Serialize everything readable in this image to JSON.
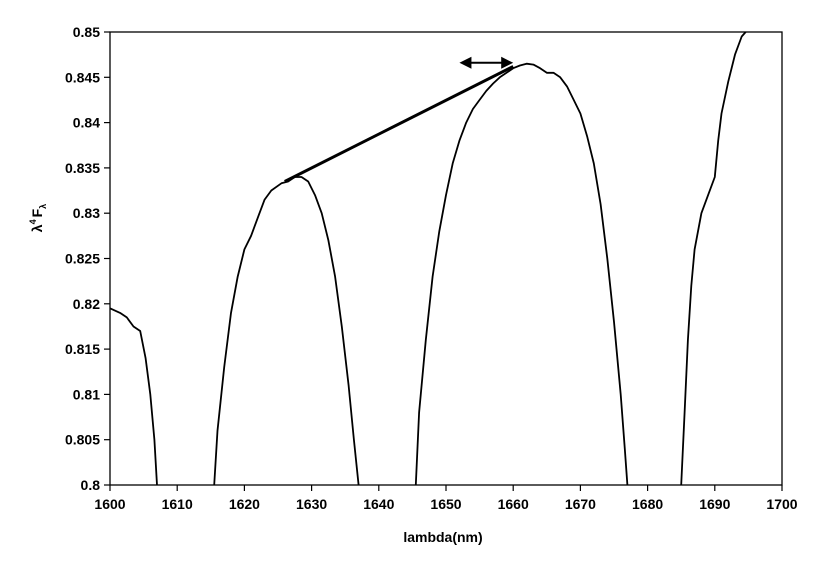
{
  "chart_data": {
    "type": "line",
    "title": "",
    "xlabel": "lambda(nm)",
    "ylabel": {
      "symbol": "λ",
      "exponent": "4",
      "main": "F",
      "subscript": "λ"
    },
    "xlim": [
      1600,
      1700
    ],
    "ylim": [
      0.8,
      0.85
    ],
    "x_ticks": [
      1600,
      1610,
      1620,
      1630,
      1640,
      1650,
      1660,
      1670,
      1680,
      1690,
      1700
    ],
    "x_tick_labels": [
      "1600",
      "1610",
      "1620",
      "1630",
      "1640",
      "1650",
      "1660",
      "1670",
      "1680",
      "1690",
      "1700"
    ],
    "y_ticks": [
      0.8,
      0.805,
      0.81,
      0.815,
      0.82,
      0.825,
      0.83,
      0.835,
      0.84,
      0.845,
      0.85
    ],
    "y_tick_labels": [
      "0.8",
      "0.805",
      "0.81",
      "0.815",
      "0.82",
      "0.825",
      "0.83",
      "0.835",
      "0.84",
      "0.845",
      "0.85"
    ],
    "grid": false,
    "series": [
      {
        "segments": [
          [
            [
              1600,
              0.8195
            ],
            [
              1601.5,
              0.819
            ],
            [
              1602.5,
              0.8185
            ],
            [
              1603.5,
              0.8175
            ],
            [
              1604.5,
              0.817
            ],
            [
              1605.3,
              0.814
            ],
            [
              1606.0,
              0.81
            ],
            [
              1606.6,
              0.805
            ],
            [
              1607.0,
              0.8
            ]
          ],
          [
            [
              1615.5,
              0.8
            ],
            [
              1616.0,
              0.806
            ],
            [
              1617.0,
              0.813
            ],
            [
              1618.0,
              0.819
            ],
            [
              1619.0,
              0.823
            ],
            [
              1620.0,
              0.826
            ],
            [
              1621.0,
              0.8275
            ],
            [
              1622.0,
              0.8295
            ],
            [
              1623.0,
              0.8315
            ],
            [
              1624.0,
              0.8325
            ],
            [
              1625.5,
              0.8333
            ],
            [
              1626.5,
              0.8335
            ],
            [
              1627.5,
              0.834
            ],
            [
              1628.5,
              0.834
            ],
            [
              1629.5,
              0.8335
            ],
            [
              1630.5,
              0.832
            ],
            [
              1631.5,
              0.83
            ],
            [
              1632.5,
              0.827
            ],
            [
              1633.5,
              0.823
            ],
            [
              1634.5,
              0.8175
            ],
            [
              1635.5,
              0.811
            ],
            [
              1636.3,
              0.805
            ],
            [
              1637.0,
              0.8
            ]
          ],
          [
            [
              1645.5,
              0.8
            ],
            [
              1646.0,
              0.808
            ],
            [
              1647.0,
              0.816
            ],
            [
              1648.0,
              0.823
            ],
            [
              1649.0,
              0.828
            ],
            [
              1650.0,
              0.832
            ],
            [
              1651.0,
              0.8355
            ],
            [
              1652.0,
              0.838
            ],
            [
              1653.0,
              0.84
            ],
            [
              1654.0,
              0.8415
            ],
            [
              1655.0,
              0.8425
            ],
            [
              1656.0,
              0.8435
            ],
            [
              1657.0,
              0.8443
            ],
            [
              1658.0,
              0.845
            ],
            [
              1659.0,
              0.8455
            ],
            [
              1660.0,
              0.846
            ],
            [
              1661.0,
              0.8463
            ],
            [
              1662.0,
              0.8465
            ],
            [
              1663.0,
              0.8464
            ],
            [
              1664.0,
              0.846
            ],
            [
              1665.0,
              0.8455
            ],
            [
              1666.0,
              0.8455
            ],
            [
              1667.0,
              0.845
            ],
            [
              1668.0,
              0.844
            ],
            [
              1669.0,
              0.8425
            ],
            [
              1670.0,
              0.841
            ],
            [
              1671.0,
              0.8385
            ],
            [
              1672.0,
              0.8355
            ],
            [
              1673.0,
              0.831
            ],
            [
              1674.0,
              0.825
            ],
            [
              1675.0,
              0.818
            ],
            [
              1676.0,
              0.81
            ],
            [
              1676.6,
              0.804
            ],
            [
              1677.0,
              0.8
            ]
          ],
          [
            [
              1685.0,
              0.8
            ],
            [
              1685.5,
              0.808
            ],
            [
              1686.0,
              0.816
            ],
            [
              1686.5,
              0.822
            ],
            [
              1687.0,
              0.826
            ],
            [
              1688.0,
              0.83
            ],
            [
              1689.0,
              0.832
            ],
            [
              1690.0,
              0.834
            ],
            [
              1690.5,
              0.838
            ],
            [
              1691.0,
              0.841
            ],
            [
              1692.0,
              0.8445
            ],
            [
              1693.0,
              0.8475
            ],
            [
              1694.0,
              0.8495
            ],
            [
              1694.6,
              0.85
            ]
          ]
        ]
      }
    ],
    "annotations": {
      "line": [
        [
          1626.0,
          0.8335
        ],
        [
          1660.0,
          0.8462
        ]
      ],
      "double_arrow": {
        "x": [
          1652,
          1660
        ],
        "y": 0.8466
      }
    }
  }
}
